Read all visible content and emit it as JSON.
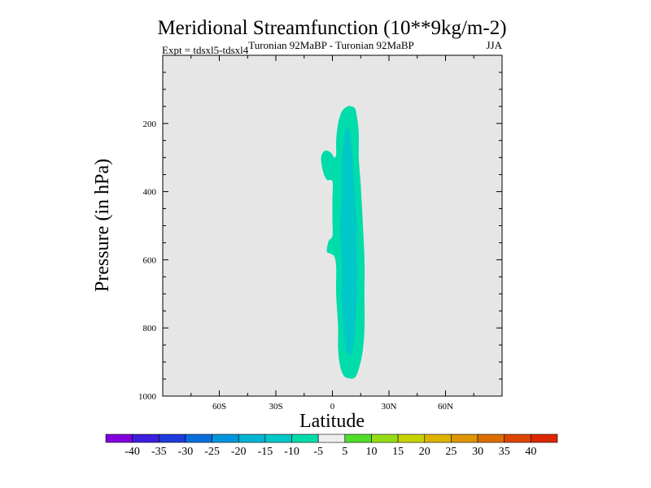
{
  "chart_data": {
    "type": "contour",
    "title": "Meridional Streamfunction (10**9kg/m-2)",
    "subtitle_left": "Expt = tdsxl5-tdsxl4",
    "subtitle_center": "Turonian  92MaBP - Turonian  92MaBP",
    "subtitle_right": "JJA",
    "xlabel": "Latitude",
    "ylabel": "Pressure (in hPa)",
    "xlim": [
      -90,
      90
    ],
    "ylim": [
      0,
      1000
    ],
    "y_inverted": true,
    "x_ticks": [
      {
        "value": -60,
        "label": "60S"
      },
      {
        "value": -30,
        "label": "30S"
      },
      {
        "value": 0,
        "label": "0"
      },
      {
        "value": 30,
        "label": "30N"
      },
      {
        "value": 60,
        "label": "60N"
      }
    ],
    "y_ticks": [
      {
        "value": 200,
        "label": "200"
      },
      {
        "value": 400,
        "label": "400"
      },
      {
        "value": 600,
        "label": "600"
      },
      {
        "value": 800,
        "label": "800"
      },
      {
        "value": 1000,
        "label": "1000"
      }
    ],
    "background_color": "#e6e6e6",
    "contours": [
      {
        "name": "outer-contour-minus10-to-minus5",
        "color": "#00dcaa",
        "points": [
          [
            10,
            150
          ],
          [
            12,
            156
          ],
          [
            13,
            180
          ],
          [
            14,
            230
          ],
          [
            14,
            300
          ],
          [
            15,
            380
          ],
          [
            16,
            480
          ],
          [
            17,
            600
          ],
          [
            17,
            700
          ],
          [
            17,
            800
          ],
          [
            16,
            870
          ],
          [
            14,
            920
          ],
          [
            12,
            945
          ],
          [
            9,
            948
          ],
          [
            6,
            940
          ],
          [
            4,
            910
          ],
          [
            3,
            860
          ],
          [
            3,
            800
          ],
          [
            2,
            700
          ],
          [
            2,
            620
          ],
          [
            1,
            590
          ],
          [
            -1,
            582
          ],
          [
            -3,
            575
          ],
          [
            -2,
            545
          ],
          [
            0,
            530
          ],
          [
            0,
            480
          ],
          [
            0,
            420
          ],
          [
            0,
            370
          ],
          [
            -3,
            365
          ],
          [
            -5,
            340
          ],
          [
            -6,
            300
          ],
          [
            -4,
            280
          ],
          [
            -1,
            285
          ],
          [
            1,
            300
          ],
          [
            2,
            290
          ],
          [
            2,
            250
          ],
          [
            3,
            200
          ],
          [
            5,
            165
          ],
          [
            8,
            150
          ]
        ]
      },
      {
        "name": "inner-contour-minus15-to-minus10",
        "color": "#00c8c8",
        "points": [
          [
            7,
            220
          ],
          [
            9,
            222
          ],
          [
            10,
            270
          ],
          [
            11,
            330
          ],
          [
            12,
            420
          ],
          [
            13,
            520
          ],
          [
            13,
            620
          ],
          [
            13,
            720
          ],
          [
            12,
            800
          ],
          [
            11,
            860
          ],
          [
            9,
            880
          ],
          [
            7,
            860
          ],
          [
            6,
            800
          ],
          [
            5,
            720
          ],
          [
            5,
            600
          ],
          [
            4,
            500
          ],
          [
            5,
            420
          ],
          [
            5,
            320
          ],
          [
            6,
            260
          ]
        ]
      }
    ],
    "colorbar": {
      "labels": [
        "-40",
        "-35",
        "-30",
        "-25",
        "-20",
        "-15",
        "-10",
        "-5",
        "5",
        "10",
        "15",
        "20",
        "25",
        "30",
        "35",
        "40"
      ],
      "colors": [
        "#8200dc",
        "#3c1edc",
        "#1e3cdc",
        "#0a6edc",
        "#0096dc",
        "#00b4d2",
        "#00c8c8",
        "#00dcaa",
        "#eeeeee",
        "#50dc28",
        "#96dc14",
        "#c8d200",
        "#dcb400",
        "#dc9600",
        "#dc6e00",
        "#dc4600",
        "#dc2800"
      ]
    }
  }
}
